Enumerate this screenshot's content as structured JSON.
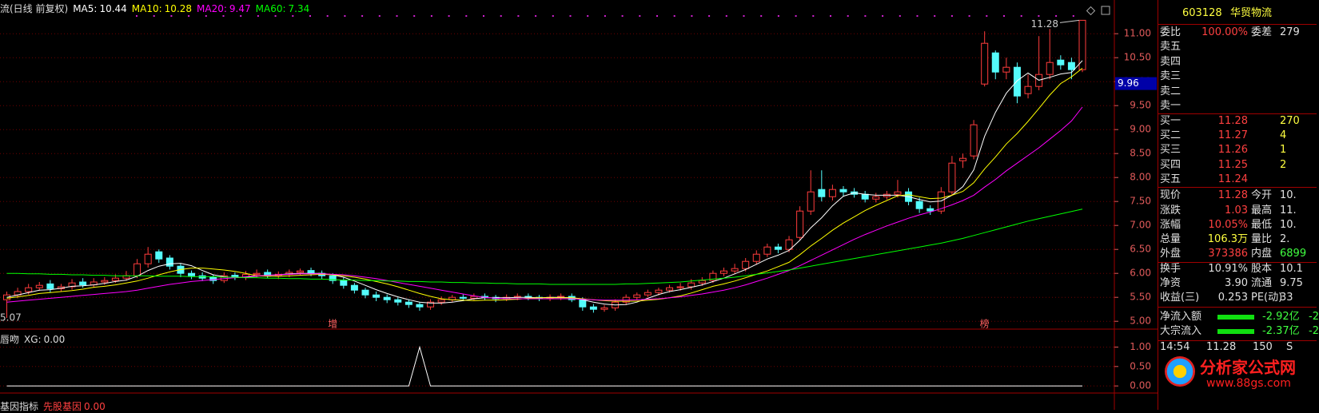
{
  "header": {
    "title": "流(日线 前复权)"
  },
  "chart_data": [
    {
      "type": "candlestick",
      "axis_color": "#e05a5a",
      "up_color": "#ff3c3c",
      "down_color": "#54fcfc",
      "grid": true,
      "ylim": [
        4.87,
        11.57
      ],
      "yticks": [
        {
          "value": 5,
          "label": "5.00"
        },
        {
          "value": 5.5,
          "label": "5.50"
        },
        {
          "value": 6,
          "label": "6.00"
        },
        {
          "value": 6.5,
          "label": "6.50"
        },
        {
          "value": 7,
          "label": "7.00"
        },
        {
          "value": 7.5,
          "label": "7.50"
        },
        {
          "value": 8,
          "label": "8.00"
        },
        {
          "value": 8.5,
          "label": "8.50"
        },
        {
          "value": 9,
          "label": "9.00"
        },
        {
          "value": 9.5,
          "label": "9.50"
        },
        {
          "value": 10,
          "label": "10.00"
        },
        {
          "value": 10.5,
          "label": "10.50"
        },
        {
          "value": 11,
          "label": "11.00"
        }
      ],
      "cursor_price": 9.96,
      "categories": [
        null,
        null,
        null,
        null,
        null,
        null,
        null,
        null,
        null,
        null,
        null,
        null,
        null,
        null,
        null,
        null,
        null,
        null,
        null,
        null,
        null,
        null,
        null,
        null,
        null,
        null,
        null,
        null,
        null,
        null,
        "增",
        null,
        null,
        null,
        null,
        null,
        null,
        null,
        null,
        null,
        null,
        null,
        null,
        null,
        null,
        null,
        null,
        null,
        null,
        null,
        null,
        null,
        null,
        null,
        null,
        null,
        null,
        null,
        null,
        null,
        null,
        null,
        null,
        null,
        null,
        null,
        null,
        null,
        null,
        null,
        null,
        null,
        null,
        null,
        null,
        null,
        null,
        null,
        null,
        null,
        null,
        null,
        null,
        null,
        null,
        null,
        null,
        null,
        null,
        null,
        "榜",
        null,
        null,
        null,
        null,
        null,
        null,
        null,
        null,
        null
      ],
      "open": [
        5.45,
        5.55,
        5.62,
        5.7,
        5.78,
        5.68,
        5.72,
        5.82,
        5.76,
        5.82,
        5.85,
        5.9,
        5.95,
        6.2,
        6.45,
        6.32,
        6.15,
        6.0,
        5.95,
        5.92,
        5.85,
        5.96,
        5.92,
        5.98,
        6.02,
        5.95,
        5.98,
        6.02,
        6.06,
        6.0,
        5.95,
        5.85,
        5.75,
        5.65,
        5.55,
        5.5,
        5.45,
        5.4,
        5.35,
        5.3,
        5.4,
        5.45,
        5.5,
        5.48,
        5.52,
        5.5,
        5.47,
        5.5,
        5.52,
        5.5,
        5.48,
        5.5,
        5.52,
        5.45,
        5.3,
        5.25,
        5.28,
        5.4,
        5.5,
        5.55,
        5.6,
        5.65,
        5.7,
        5.72,
        5.8,
        5.85,
        6.0,
        6.05,
        6.1,
        6.25,
        6.4,
        6.55,
        6.5,
        6.75,
        7.3,
        7.75,
        7.6,
        7.75,
        7.7,
        7.65,
        7.55,
        7.6,
        7.65,
        7.7,
        7.5,
        7.35,
        7.3,
        7.7,
        8.35,
        8.45,
        9.95,
        10.6,
        10.2,
        10.3,
        9.75,
        9.9,
        10.15,
        10.45,
        10.4,
        10.25
      ],
      "high": [
        5.62,
        5.7,
        5.78,
        5.82,
        5.86,
        5.78,
        5.88,
        5.9,
        5.9,
        5.92,
        5.98,
        6.05,
        6.3,
        6.55,
        6.5,
        6.38,
        6.2,
        6.06,
        6.02,
        5.98,
        6.02,
        6.02,
        6.05,
        6.08,
        6.08,
        6.04,
        6.08,
        6.1,
        6.12,
        6.06,
        6.0,
        5.92,
        5.8,
        5.7,
        5.62,
        5.56,
        5.5,
        5.46,
        5.4,
        5.46,
        5.52,
        5.55,
        5.56,
        5.58,
        5.58,
        5.55,
        5.56,
        5.58,
        5.58,
        5.55,
        5.56,
        5.58,
        5.58,
        5.5,
        5.36,
        5.34,
        5.46,
        5.56,
        5.6,
        5.66,
        5.7,
        5.76,
        5.8,
        5.88,
        5.92,
        6.06,
        6.12,
        6.2,
        6.32,
        6.48,
        6.62,
        6.62,
        6.78,
        7.4,
        8.15,
        8.15,
        7.85,
        7.82,
        7.78,
        7.72,
        7.68,
        7.72,
        7.95,
        7.78,
        7.58,
        7.42,
        7.8,
        8.45,
        8.5,
        9.2,
        11.05,
        10.65,
        10.5,
        10.4,
        10.15,
        10.95,
        11.1,
        10.55,
        10.5,
        11.28
      ],
      "low": [
        5.07,
        5.48,
        5.56,
        5.64,
        5.6,
        5.62,
        5.66,
        5.7,
        5.7,
        5.76,
        5.8,
        5.85,
        5.9,
        6.12,
        6.22,
        6.08,
        5.92,
        5.88,
        5.84,
        5.78,
        5.8,
        5.86,
        5.86,
        5.92,
        5.9,
        5.88,
        5.92,
        5.96,
        5.94,
        5.88,
        5.78,
        5.68,
        5.58,
        5.48,
        5.42,
        5.38,
        5.33,
        5.28,
        5.22,
        5.24,
        5.34,
        5.4,
        5.42,
        5.44,
        5.44,
        5.4,
        5.42,
        5.44,
        5.44,
        5.42,
        5.42,
        5.44,
        5.4,
        5.22,
        5.18,
        5.2,
        5.22,
        5.34,
        5.44,
        5.5,
        5.54,
        5.6,
        5.64,
        5.66,
        5.74,
        5.8,
        5.94,
        5.98,
        6.04,
        6.18,
        6.34,
        6.42,
        6.44,
        6.7,
        7.22,
        7.5,
        7.52,
        7.6,
        7.58,
        7.48,
        7.48,
        7.54,
        7.58,
        7.42,
        7.26,
        7.22,
        7.24,
        7.62,
        8.2,
        8.38,
        9.9,
        10.05,
        10.05,
        9.55,
        9.65,
        9.82,
        10.05,
        10.25,
        10.05,
        10.2
      ],
      "close": [
        5.55,
        5.62,
        5.7,
        5.75,
        5.68,
        5.72,
        5.8,
        5.76,
        5.82,
        5.85,
        5.9,
        5.95,
        6.2,
        6.4,
        6.3,
        6.15,
        6.0,
        5.95,
        5.9,
        5.85,
        5.95,
        5.92,
        5.98,
        6.0,
        5.95,
        5.98,
        6.02,
        6.05,
        6.0,
        5.95,
        5.85,
        5.75,
        5.65,
        5.55,
        5.5,
        5.45,
        5.4,
        5.35,
        5.3,
        5.4,
        5.45,
        5.5,
        5.48,
        5.52,
        5.5,
        5.47,
        5.5,
        5.52,
        5.5,
        5.48,
        5.5,
        5.52,
        5.45,
        5.3,
        5.25,
        5.28,
        5.4,
        5.5,
        5.55,
        5.6,
        5.65,
        5.7,
        5.72,
        5.8,
        5.85,
        6.0,
        6.05,
        6.1,
        6.25,
        6.4,
        6.55,
        6.5,
        6.7,
        7.3,
        7.7,
        7.6,
        7.75,
        7.7,
        7.65,
        7.55,
        7.6,
        7.65,
        7.7,
        7.5,
        7.35,
        7.3,
        7.7,
        8.3,
        8.4,
        9.1,
        10.8,
        10.2,
        10.3,
        9.7,
        9.9,
        10.15,
        10.4,
        10.35,
        10.25,
        11.28
      ],
      "series": [
        {
          "name": "MA5:",
          "color": "#ffffff",
          "values": [
            5.5,
            5.55,
            5.6,
            5.65,
            5.66,
            5.69,
            5.73,
            5.74,
            5.76,
            5.79,
            5.83,
            5.86,
            5.94,
            6.06,
            6.15,
            6.2,
            6.21,
            6.16,
            6.06,
            5.97,
            5.93,
            5.91,
            5.92,
            5.94,
            5.96,
            5.97,
            5.99,
            6.0,
            6.0,
            6.0,
            5.97,
            5.92,
            5.84,
            5.75,
            5.66,
            5.58,
            5.51,
            5.45,
            5.4,
            5.38,
            5.38,
            5.4,
            5.43,
            5.47,
            5.49,
            5.49,
            5.49,
            5.5,
            5.5,
            5.49,
            5.5,
            5.5,
            5.49,
            5.45,
            5.4,
            5.36,
            5.34,
            5.35,
            5.4,
            5.48,
            5.56,
            5.62,
            5.66,
            5.71,
            5.76,
            5.83,
            5.9,
            5.99,
            6.08,
            6.19,
            6.3,
            6.38,
            6.48,
            6.69,
            6.95,
            7.16,
            7.41,
            7.61,
            7.68,
            7.65,
            7.63,
            7.63,
            7.63,
            7.6,
            7.54,
            7.49,
            7.51,
            7.63,
            7.81,
            8.16,
            8.86,
            9.36,
            9.76,
            10.02,
            10.18,
            10.03,
            10.09,
            10.16,
            10.19,
            10.44
          ]
        },
        {
          "name": "MA10:",
          "color": "#ffff00",
          "values": [
            5.48,
            5.51,
            5.54,
            5.58,
            5.6,
            5.62,
            5.64,
            5.67,
            5.71,
            5.73,
            5.76,
            5.8,
            5.84,
            5.9,
            5.97,
            6.03,
            6.08,
            6.11,
            6.11,
            6.09,
            6.07,
            6.04,
            6.0,
            5.95,
            5.94,
            5.94,
            5.95,
            5.96,
            5.97,
            5.98,
            5.97,
            5.95,
            5.92,
            5.88,
            5.83,
            5.78,
            5.72,
            5.65,
            5.58,
            5.52,
            5.47,
            5.45,
            5.44,
            5.43,
            5.44,
            5.44,
            5.45,
            5.46,
            5.48,
            5.49,
            5.49,
            5.49,
            5.49,
            5.47,
            5.45,
            5.43,
            5.42,
            5.42,
            5.42,
            5.44,
            5.46,
            5.49,
            5.53,
            5.59,
            5.66,
            5.73,
            5.78,
            5.84,
            5.91,
            5.98,
            6.05,
            6.14,
            6.23,
            6.39,
            6.57,
            6.73,
            6.9,
            7.05,
            7.18,
            7.31,
            7.42,
            7.52,
            7.62,
            7.64,
            7.6,
            7.56,
            7.57,
            7.63,
            7.71,
            7.89,
            8.18,
            8.43,
            8.7,
            8.92,
            9.17,
            9.44,
            9.72,
            9.96,
            10.1,
            10.28
          ]
        },
        {
          "name": "MA20:",
          "color": "#ff00ff",
          "values": [
            5.4,
            5.42,
            5.44,
            5.46,
            5.48,
            5.5,
            5.52,
            5.54,
            5.56,
            5.58,
            5.6,
            5.62,
            5.65,
            5.69,
            5.73,
            5.77,
            5.8,
            5.83,
            5.85,
            5.87,
            5.89,
            5.91,
            5.93,
            5.95,
            5.96,
            5.97,
            5.98,
            5.99,
            5.99,
            5.99,
            5.98,
            5.97,
            5.95,
            5.92,
            5.89,
            5.85,
            5.81,
            5.77,
            5.73,
            5.69,
            5.65,
            5.61,
            5.57,
            5.53,
            5.5,
            5.48,
            5.47,
            5.47,
            5.47,
            5.47,
            5.47,
            5.47,
            5.47,
            5.46,
            5.45,
            5.44,
            5.44,
            5.44,
            5.45,
            5.46,
            5.47,
            5.49,
            5.51,
            5.54,
            5.57,
            5.61,
            5.65,
            5.7,
            5.76,
            5.83,
            5.9,
            5.98,
            6.06,
            6.16,
            6.27,
            6.38,
            6.49,
            6.6,
            6.71,
            6.81,
            6.9,
            6.99,
            7.07,
            7.15,
            7.22,
            7.28,
            7.35,
            7.43,
            7.52,
            7.63,
            7.8,
            7.96,
            8.14,
            8.3,
            8.46,
            8.62,
            8.8,
            8.98,
            9.18,
            9.47
          ]
        },
        {
          "name": "MA60:",
          "color": "#00ff00",
          "values": [
            6.0,
            6.0,
            5.99,
            5.99,
            5.98,
            5.98,
            5.97,
            5.97,
            5.96,
            5.96,
            5.95,
            5.95,
            5.95,
            5.95,
            5.94,
            5.94,
            5.94,
            5.93,
            5.93,
            5.93,
            5.92,
            5.92,
            5.91,
            5.91,
            5.9,
            5.9,
            5.89,
            5.89,
            5.88,
            5.88,
            5.87,
            5.86,
            5.86,
            5.85,
            5.85,
            5.84,
            5.84,
            5.83,
            5.83,
            5.82,
            5.82,
            5.81,
            5.81,
            5.8,
            5.8,
            5.79,
            5.79,
            5.78,
            5.78,
            5.78,
            5.77,
            5.77,
            5.77,
            5.77,
            5.77,
            5.77,
            5.77,
            5.78,
            5.78,
            5.79,
            5.8,
            5.81,
            5.82,
            5.84,
            5.86,
            5.88,
            5.9,
            5.92,
            5.95,
            5.98,
            6.01,
            6.04,
            6.07,
            6.11,
            6.15,
            6.19,
            6.23,
            6.27,
            6.31,
            6.35,
            6.39,
            6.43,
            6.47,
            6.51,
            6.55,
            6.59,
            6.63,
            6.68,
            6.73,
            6.79,
            6.85,
            6.91,
            6.97,
            7.03,
            7.09,
            7.14,
            7.19,
            7.24,
            7.29,
            7.34
          ]
        }
      ]
    },
    {
      "type": "line",
      "title": "唇吻",
      "axis_color": "#e05a5a",
      "grid": true,
      "ylim": [
        -0.1,
        1.4
      ],
      "yticks": [
        {
          "value": 0,
          "label": "0.00"
        },
        {
          "value": 0.5,
          "label": "0.50"
        },
        {
          "value": 1,
          "label": "1.00"
        }
      ],
      "current_label": "0.00",
      "series": [
        {
          "name": "XG:",
          "color": "#ffffff",
          "values": [
            0,
            0,
            0,
            0,
            0,
            0,
            0,
            0,
            0,
            0,
            0,
            0,
            0,
            0,
            0,
            0,
            0,
            0,
            0,
            0,
            0,
            0,
            0,
            0,
            0,
            0,
            0,
            0,
            0,
            0,
            0,
            0,
            0,
            0,
            0,
            0,
            0,
            0,
            1,
            0,
            0,
            0,
            0,
            0,
            0,
            0,
            0,
            0,
            0,
            0,
            0,
            0,
            0,
            0,
            0,
            0,
            0,
            0,
            0,
            0,
            0,
            0,
            0,
            0,
            0,
            0,
            0,
            0,
            0,
            0,
            0,
            0,
            0,
            0,
            0,
            0,
            0,
            0,
            0,
            0,
            0,
            0,
            0,
            0,
            0,
            0,
            0,
            0,
            0,
            0,
            0,
            0,
            0,
            0,
            0,
            0,
            0,
            0,
            0,
            0
          ]
        }
      ]
    }
  ],
  "bottom_indicator": {
    "title": "基因指标",
    "name": "先股基因",
    "value_label": "0.00"
  },
  "quote": {
    "code": "603128",
    "name": "华贸物流",
    "rows": [
      [
        "委比",
        "100.00%",
        "委差",
        "279"
      ],
      [
        "卖五"
      ],
      [
        "卖四"
      ],
      [
        "卖三"
      ],
      [
        "卖二"
      ],
      [
        "卖一"
      ],
      [
        "买一",
        "11.28",
        "270"
      ],
      [
        "买二",
        "11.27",
        "4"
      ],
      [
        "买三",
        "11.26",
        "1"
      ],
      [
        "买四",
        "11.25",
        "2"
      ],
      [
        "买五",
        "11.24"
      ],
      [
        "现价",
        "11.28",
        "今开",
        "10."
      ],
      [
        "涨跌",
        "1.03",
        "最高",
        "11."
      ],
      [
        "涨幅",
        "10.05%",
        "最低",
        "10."
      ],
      [
        "总量",
        "106.3万",
        "量比",
        "2."
      ],
      [
        "外盘",
        "373386",
        "内盘",
        "6899"
      ],
      [
        "换手",
        "10.91%",
        "股本",
        "10.1"
      ],
      [
        "净资",
        "3.90",
        "流通",
        "9.75"
      ],
      [
        "收益(三)",
        "0.253",
        "PE(动)",
        "33"
      ]
    ],
    "flows": [
      {
        "label": "净流入额",
        "value": "-2.92亿",
        "value2": "-2"
      },
      {
        "label": "大宗流入",
        "value": "-2.37亿",
        "value2": "-2"
      }
    ],
    "trade": [
      "14:54",
      "11.28",
      "150",
      "S"
    ]
  },
  "watermark": {
    "title": "分析家公式网",
    "url": "www.88gs.com"
  }
}
